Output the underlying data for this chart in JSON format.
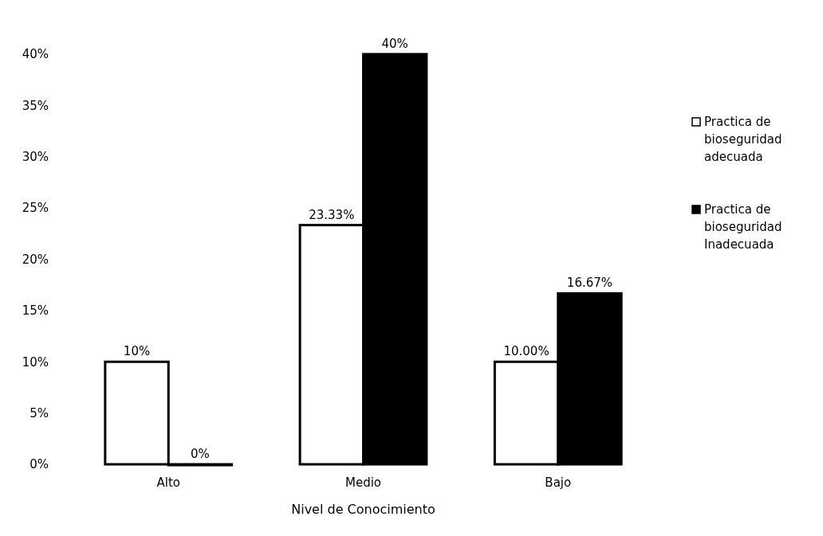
{
  "chart_data": {
    "type": "bar",
    "xlabel": "Nivel de Conocimiento",
    "categories": [
      "Alto",
      "Medio",
      "Bajo"
    ],
    "series": [
      {
        "name": "Practica de bioseguridad adecuada",
        "color": "#ffffff",
        "values": [
          10,
          23.33,
          10
        ],
        "value_labels": [
          "10%",
          "23.33%",
          "10.00%"
        ]
      },
      {
        "name": "Practica de bioseguridad Inadecuada",
        "color": "#000000",
        "values": [
          0,
          40,
          16.67
        ],
        "value_labels": [
          "0%",
          "40%",
          "16.67%"
        ]
      }
    ],
    "ylim": [
      0,
      40
    ],
    "yticks": [
      {
        "value": 0,
        "label": "0%"
      },
      {
        "value": 5,
        "label": "5%"
      },
      {
        "value": 10,
        "label": "10%"
      },
      {
        "value": 15,
        "label": "15%"
      },
      {
        "value": 20,
        "label": "20%"
      },
      {
        "value": 25,
        "label": "25%"
      },
      {
        "value": 30,
        "label": "30%"
      },
      {
        "value": 35,
        "label": "35%"
      },
      {
        "value": 40,
        "label": "40%"
      }
    ],
    "grid": false,
    "legend": "right"
  }
}
